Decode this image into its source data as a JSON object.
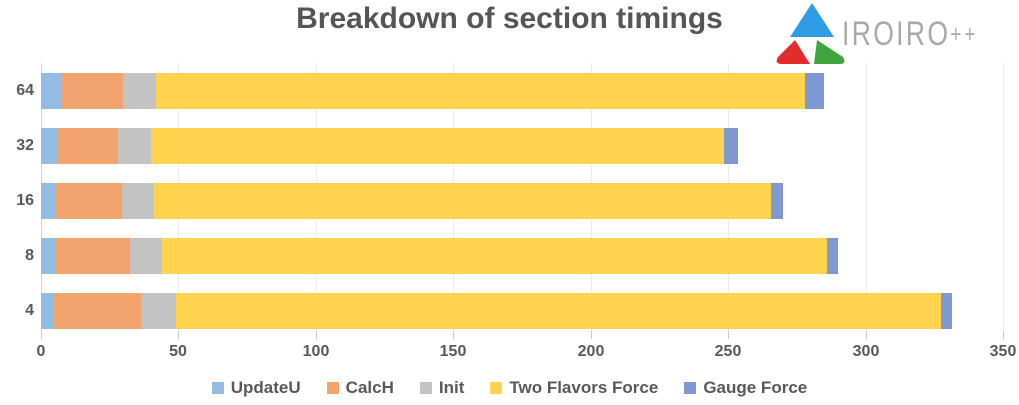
{
  "title": "Breakdown of section timings",
  "logo": {
    "brand": "IROIRO",
    "suffix": "++",
    "triangle_colors": {
      "top": "#2e9be6",
      "left": "#e32d2d",
      "right": "#3fa63f"
    },
    "text_color": "#a9a9a9"
  },
  "chart_data": {
    "type": "bar",
    "orientation": "horizontal",
    "title": "Breakdown of section timings",
    "categories": [
      "64",
      "32",
      "16",
      "8",
      "4"
    ],
    "series": [
      {
        "name": "UpdateU",
        "color": "#92bce2",
        "values": [
          7.5,
          6,
          5,
          5,
          4.5
        ]
      },
      {
        "name": "CalcH",
        "color": "#f2a46c",
        "values": [
          22.5,
          22,
          24.5,
          27.5,
          32
        ]
      },
      {
        "name": "Init",
        "color": "#c3c3c3",
        "values": [
          12,
          12,
          11.5,
          11.5,
          12.5
        ]
      },
      {
        "name": "Two Flavors Force",
        "color": "#ffd34d",
        "values": [
          236,
          208.5,
          224.5,
          242,
          278.5
        ]
      },
      {
        "name": "Gauge Force",
        "color": "#8098d2",
        "values": [
          7,
          5,
          4.5,
          4,
          4
        ]
      }
    ],
    "totals": [
      285,
      253.5,
      270,
      290,
      331.5
    ],
    "xlabel": "",
    "ylabel": "",
    "xlim": [
      0,
      350
    ],
    "xticks": [
      0,
      50,
      100,
      150,
      200,
      250,
      300,
      350
    ],
    "grid": true,
    "legend_position": "bottom"
  }
}
